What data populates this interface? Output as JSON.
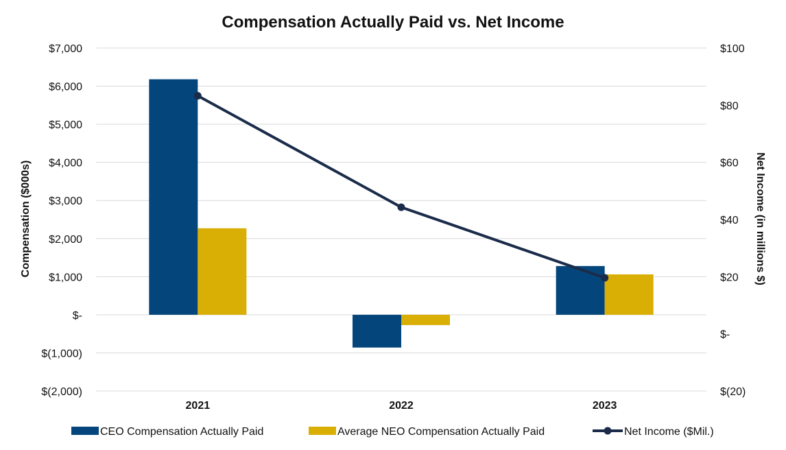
{
  "chart_data": {
    "type": "bar",
    "title": "Compensation Actually Paid vs. Net Income",
    "categories": [
      "2021",
      "2022",
      "2023"
    ],
    "series": [
      {
        "name": "CEO Compensation Actually Paid",
        "type": "bar",
        "axis": "left",
        "values": [
          6180,
          -860,
          1280
        ],
        "color": "#04467C"
      },
      {
        "name": "Average NEO Compensation Actually Paid",
        "type": "bar",
        "axis": "left",
        "values": [
          2270,
          -270,
          1060
        ],
        "color": "#D9AE05"
      },
      {
        "name": "Net Income ($Mil.)",
        "type": "line",
        "axis": "right",
        "values": [
          83.3,
          44.3,
          19.6
        ],
        "color": "#1B2C4A"
      }
    ],
    "ylabel": "Compensation ($000s)",
    "y2label": "Net Income (in millions $)",
    "ylim": [
      -2000,
      7000
    ],
    "y2lim": [
      -20,
      100
    ],
    "yticks": [
      "$7,000",
      "$6,000",
      "$5,000",
      "$4,000",
      "$3,000",
      "$2,000",
      "$1,000",
      "$-",
      "$(1,000)",
      "$(2,000)"
    ],
    "y2ticks": [
      "$100",
      "$80",
      "$60",
      "$40",
      "$20",
      "$-",
      "$(20)"
    ],
    "grid": true,
    "legend_position": "bottom"
  }
}
